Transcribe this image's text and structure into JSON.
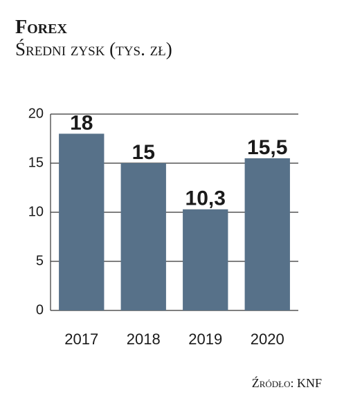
{
  "chart_data": {
    "type": "bar",
    "title": "Forex",
    "subtitle": "Średni zysk (tys. zł)",
    "categories": [
      "2017",
      "2018",
      "2019",
      "2020"
    ],
    "values": [
      18,
      15,
      10.3,
      15.5
    ],
    "value_labels": [
      "18",
      "15",
      "10,3",
      "15,5"
    ],
    "color": "#577189",
    "ylim": [
      0,
      20
    ],
    "yticks": [
      0,
      5,
      10,
      15,
      20
    ],
    "grid": true,
    "source": "Źródło: KNF"
  }
}
